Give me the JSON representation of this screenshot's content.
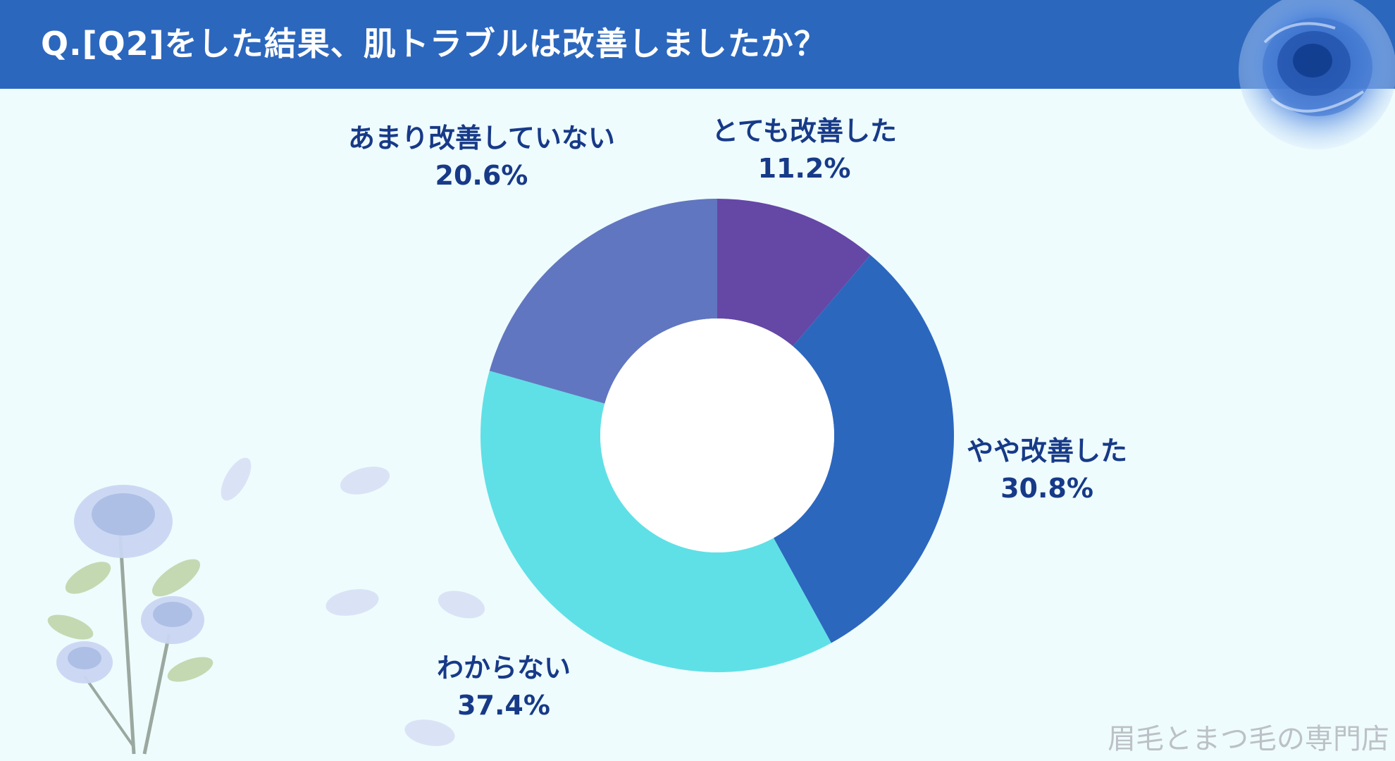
{
  "header": {
    "title": "Q.[Q2]をした結果、肌トラブルは改善しましたか？"
  },
  "chart_data": {
    "type": "pie",
    "donut": true,
    "title": "Q.[Q2]をした結果、肌トラブルは改善しましたか？",
    "slices": [
      {
        "label": "とても改善した",
        "value": 11.2,
        "value_label": "11.2%",
        "color": "#6547a6"
      },
      {
        "label": "やや改善した",
        "value": 30.8,
        "value_label": "30.8%",
        "color": "#2c67be"
      },
      {
        "label": "わからない",
        "value": 37.4,
        "value_label": "37.4%",
        "color": "#5fe0e6"
      },
      {
        "label": "あまり改善していない",
        "value": 20.6,
        "value_label": "20.6%",
        "color": "#6176c0"
      }
    ],
    "start_angle_deg": 0,
    "direction": "clockwise"
  },
  "watermark": "眉毛とまつ毛の専門店",
  "colors": {
    "header_bg": "#2c67be",
    "page_bg": "#effcfd",
    "label_text": "#173a88",
    "watermark_text": "#bcc1c7"
  },
  "decorations": {
    "top_right": "blue-rose-icon",
    "bottom_left": "blue-rose-bouquet-icon",
    "petals": "petal-icon"
  }
}
